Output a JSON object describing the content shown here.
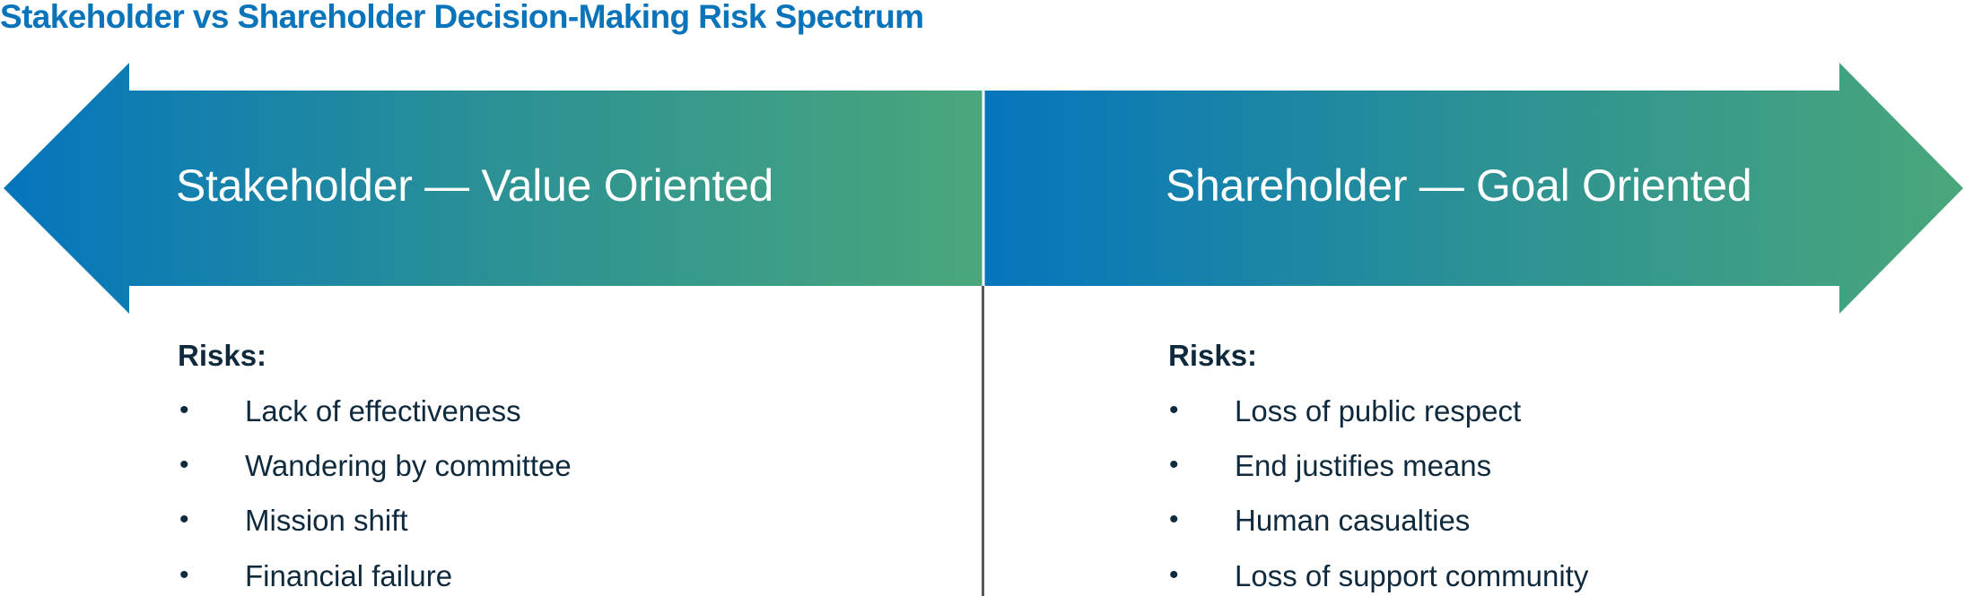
{
  "title": "Stakeholder vs Shareholder Decision-Making Risk Spectrum",
  "colors": {
    "title": "#0a74bb",
    "gradient_start": "#0575bd",
    "gradient_end": "#4aa67b",
    "text": "#0f2a3d",
    "divider": "#58595b"
  },
  "left": {
    "heading": "Stakeholder — Value Oriented",
    "risks_label": "Risks:",
    "risks": [
      "Lack of effectiveness",
      "Wandering by committee",
      "Mission shift",
      "Financial failure"
    ]
  },
  "right": {
    "heading": "Shareholder — Goal Oriented",
    "risks_label": "Risks:",
    "risks": [
      "Loss of public respect",
      "End justifies means",
      "Human casualties",
      "Loss of support community"
    ]
  }
}
